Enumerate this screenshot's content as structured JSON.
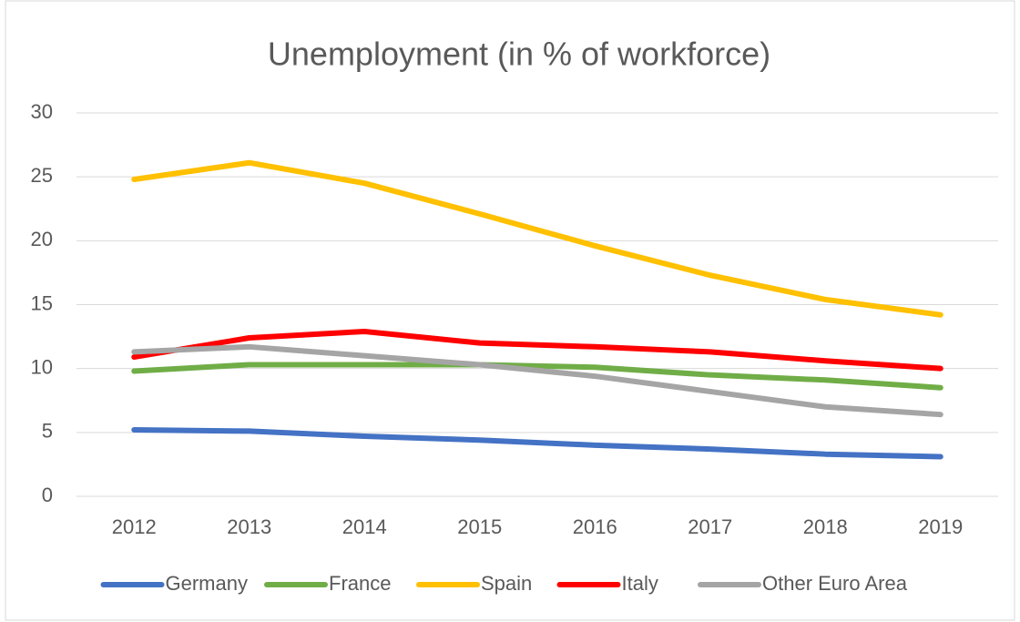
{
  "chart_data": {
    "type": "line",
    "title": "Unemployment (in % of workforce)",
    "categories": [
      "2012",
      "2013",
      "2014",
      "2015",
      "2016",
      "2017",
      "2018",
      "2019"
    ],
    "series": [
      {
        "name": "Germany",
        "color": "#4472c4",
        "values": [
          5.2,
          5.1,
          4.7,
          4.4,
          4.0,
          3.7,
          3.3,
          3.1
        ]
      },
      {
        "name": "France",
        "color": "#70ad47",
        "values": [
          9.8,
          10.3,
          10.3,
          10.3,
          10.1,
          9.5,
          9.1,
          8.5
        ]
      },
      {
        "name": "Spain",
        "color": "#ffc000",
        "values": [
          24.8,
          26.1,
          24.5,
          22.1,
          19.6,
          17.3,
          15.4,
          14.2
        ]
      },
      {
        "name": "Italy",
        "color": "#ff0000",
        "values": [
          10.9,
          12.4,
          12.9,
          12.0,
          11.7,
          11.3,
          10.6,
          10.0
        ]
      },
      {
        "name": "Other Euro Area",
        "color": "#a5a5a5",
        "values": [
          11.3,
          11.7,
          11.0,
          10.3,
          9.4,
          8.2,
          7.0,
          6.4
        ]
      }
    ],
    "ylim": [
      0,
      30
    ],
    "yticks": [
      0,
      5,
      10,
      15,
      20,
      25,
      30
    ],
    "grid": true,
    "legend": "bottom"
  }
}
